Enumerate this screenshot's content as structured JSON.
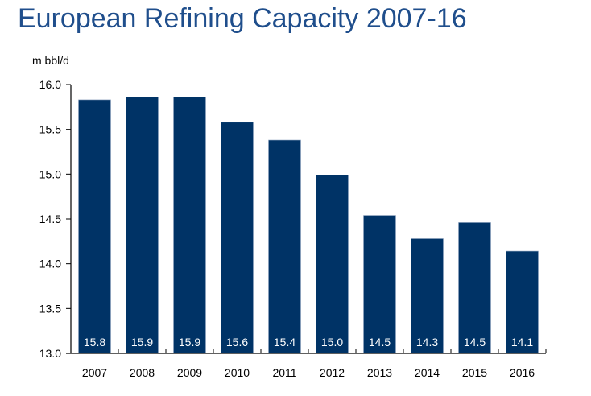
{
  "chart_data": {
    "type": "bar",
    "title": "European Refining Capacity 2007-16",
    "ylabel": "m bbl/d",
    "xlabel": "",
    "categories": [
      "2007",
      "2008",
      "2009",
      "2010",
      "2011",
      "2012",
      "2013",
      "2014",
      "2015",
      "2016"
    ],
    "values": [
      15.83,
      15.86,
      15.86,
      15.58,
      15.38,
      14.99,
      14.54,
      14.28,
      14.46,
      14.14
    ],
    "data_labels": [
      "15.8",
      "15.9",
      "15.9",
      "15.6",
      "15.4",
      "15.0",
      "14.5",
      "14.3",
      "14.5",
      "14.1"
    ],
    "ylim": [
      13.0,
      16.0
    ],
    "yticks": [
      "13.0",
      "13.5",
      "14.0",
      "14.5",
      "15.0",
      "15.5",
      "16.0"
    ],
    "ytick_values": [
      13.0,
      13.5,
      14.0,
      14.5,
      15.0,
      15.5,
      16.0
    ],
    "grid": false,
    "bar_color": "#003366",
    "title_color": "#1f4e8c"
  }
}
